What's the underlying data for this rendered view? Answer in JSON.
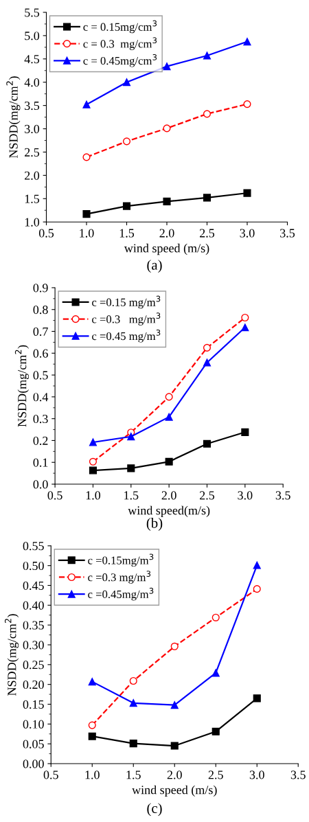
{
  "chart_data": [
    {
      "type": "line",
      "xlabel": "wind speed (m/s)",
      "ylabel": "NSDD(mg/cm$^{2}$)",
      "annotations": [
        "(a)"
      ],
      "x": [
        1.0,
        1.5,
        2.0,
        2.5,
        3.0
      ],
      "series": [
        {
          "name": "c = 0.15mg/cm$^{3}$",
          "color": "#000000",
          "marker": "square",
          "line_style": "solid",
          "values": [
            1.17,
            1.34,
            1.44,
            1.52,
            1.62
          ]
        },
        {
          "name": "c = 0.3  mg/cm$^{3}$",
          "color": "#ff0000",
          "marker": "circle",
          "line_style": "dashed",
          "values": [
            2.39,
            2.73,
            3.01,
            3.32,
            3.53
          ]
        },
        {
          "name": "c = 0.45mg/cm$^{3}$",
          "color": "#0000ff",
          "marker": "triangle",
          "line_style": "solid",
          "values": [
            3.52,
            4.0,
            4.34,
            4.57,
            4.87
          ]
        }
      ],
      "xlim": [
        0.5,
        3.5
      ],
      "ylim": [
        1.0,
        5.5
      ],
      "xticks": [
        0.5,
        {
          "value": 1,
          "label": "1.0"
        },
        1.5,
        {
          "value": 2,
          "label": "2.0"
        },
        2.5,
        {
          "value": 3,
          "label": "3.0"
        },
        3.5
      ],
      "yticks": [
        {
          "value": 1,
          "label": "1.0"
        },
        1.5,
        {
          "value": 2,
          "label": "2.0"
        },
        2.5,
        {
          "value": 3,
          "label": "3.0"
        },
        3.5,
        {
          "value": 4,
          "label": "4.0"
        },
        4.5,
        {
          "value": 5,
          "label": "5.0"
        },
        5.5
      ],
      "grid": false,
      "legend": "top left"
    },
    {
      "type": "line",
      "xlabel": "wind speed(m/s)",
      "ylabel": "NSDD(mg/cm$^{2}$)",
      "annotations": [
        "(b)"
      ],
      "x": [
        1.0,
        1.5,
        2.0,
        2.5,
        3.0
      ],
      "series": [
        {
          "name": "c =0.15 mg/m$^{3}$",
          "color": "#000000",
          "marker": "square",
          "line_style": "solid",
          "values": [
            0.063,
            0.073,
            0.103,
            0.185,
            0.238
          ]
        },
        {
          "name": "c =0.3   mg/m$^{3}$",
          "color": "#ff0000",
          "marker": "circle",
          "line_style": "dashed",
          "values": [
            0.103,
            0.237,
            0.4,
            0.625,
            0.763
          ]
        },
        {
          "name": "c =0.45 mg/m$^{3}$",
          "color": "#0000ff",
          "marker": "triangle",
          "line_style": "solid",
          "values": [
            0.192,
            0.218,
            0.308,
            0.557,
            0.718
          ]
        }
      ],
      "xlim": [
        0.5,
        3.5
      ],
      "ylim": [
        0.0,
        0.9
      ],
      "xticks": [
        0.5,
        {
          "value": 1,
          "label": "1.0"
        },
        1.5,
        {
          "value": 2,
          "label": "2.0"
        },
        2.5,
        {
          "value": 3,
          "label": "3.0"
        },
        3.5
      ],
      "yticks": [
        {
          "value": 0,
          "label": "0.0"
        },
        0.1,
        0.2,
        0.3,
        0.4,
        0.5,
        0.6,
        0.7,
        0.8,
        0.9
      ],
      "grid": false,
      "legend": "top left"
    },
    {
      "type": "line",
      "xlabel": "wind speed (m/s)",
      "ylabel": "NSDD(mg/cm$^{2}$)",
      "annotations": [
        "(c)"
      ],
      "x": [
        1.0,
        1.5,
        2.0,
        2.5,
        3.0
      ],
      "series": [
        {
          "name": "c =0.15mg/m$^{3}$",
          "color": "#000000",
          "marker": "square",
          "line_style": "solid",
          "values": [
            0.069,
            0.051,
            0.045,
            0.081,
            0.165
          ]
        },
        {
          "name": "c =0.3 mg/m$^{3}$",
          "color": "#ff0000",
          "marker": "circle",
          "line_style": "dashed",
          "values": [
            0.097,
            0.209,
            0.296,
            0.369,
            0.441
          ]
        },
        {
          "name": "c =0.45mg/m$^{3}$",
          "color": "#0000ff",
          "marker": "triangle",
          "line_style": "solid",
          "values": [
            0.207,
            0.153,
            0.148,
            0.229,
            0.501
          ]
        }
      ],
      "xlim": [
        0.5,
        3.5
      ],
      "ylim": [
        0.0,
        0.55
      ],
      "xticks": [
        0.5,
        {
          "value": 1,
          "label": "1.0"
        },
        1.5,
        {
          "value": 2,
          "label": "2.0"
        },
        2.5,
        {
          "value": 3,
          "label": "3.0"
        },
        3.5
      ],
      "yticks": [
        {
          "value": 0,
          "label": "0.00"
        },
        0.05,
        {
          "value": 0.1,
          "label": "0.10"
        },
        0.15,
        {
          "value": 0.2,
          "label": "0.20"
        },
        0.25,
        {
          "value": 0.3,
          "label": "0.30"
        },
        0.35,
        {
          "value": 0.4,
          "label": "0.40"
        },
        0.45,
        {
          "value": 0.5,
          "label": "0.50"
        },
        0.55
      ],
      "grid": false,
      "legend": "top left"
    }
  ]
}
